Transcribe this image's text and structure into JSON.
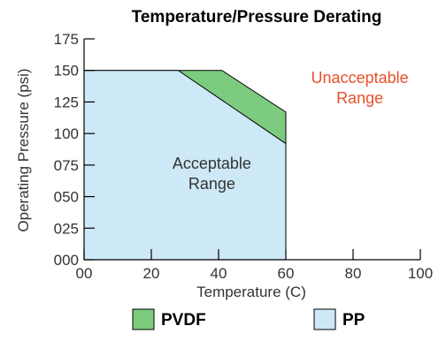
{
  "chart_data": {
    "type": "area",
    "title": "Temperature/Pressure  Derating",
    "xlabel": "Temperature (C)",
    "ylabel": "Operating Pressure (psi)",
    "xlim": [
      0,
      100
    ],
    "ylim": [
      0,
      175
    ],
    "x_ticks": [
      0,
      20,
      40,
      60,
      80,
      100
    ],
    "x_tick_labels": [
      "00",
      "20",
      "40",
      "60",
      "80",
      "100"
    ],
    "y_ticks": [
      0,
      25,
      50,
      75,
      100,
      125,
      150,
      175
    ],
    "y_tick_labels": [
      "000",
      "025",
      "050",
      "075",
      "100",
      "125",
      "150",
      "175"
    ],
    "grid": false,
    "legend_position": "bottom",
    "series": [
      {
        "name": "PVDF",
        "color": "#7ccb7e",
        "x": [
          0,
          41,
          60,
          60
        ],
        "y": [
          150,
          150,
          117,
          0
        ]
      },
      {
        "name": "PP",
        "color": "#cde8f6",
        "x": [
          0,
          28,
          60,
          60
        ],
        "y": [
          150,
          150,
          92,
          0
        ]
      }
    ],
    "annotations": [
      {
        "text_lines": [
          "Acceptable",
          "Range"
        ],
        "x": 38,
        "y": 72,
        "color": "#333333"
      },
      {
        "text_lines": [
          "Unacceptable",
          "Range"
        ],
        "x": 82,
        "y": 140,
        "color": "#e8502a"
      }
    ]
  }
}
